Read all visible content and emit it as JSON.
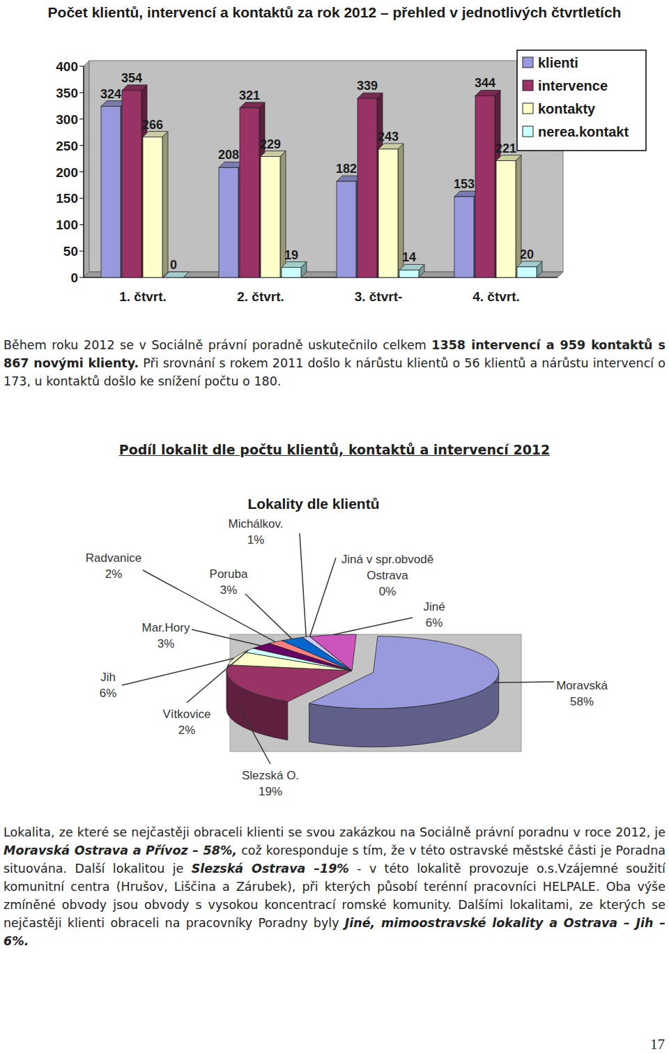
{
  "chart_data": [
    {
      "type": "bar",
      "title": "Počet klientů, intervencí a kontaktů za rok 2012 – přehled v jednotlivých čtvrtletích",
      "categories": [
        "1. čtvrt.",
        "2. čtvrt.",
        "3. čtvrt-",
        "4. čtvrt."
      ],
      "series": [
        {
          "name": "klienti",
          "color": "#9999dd",
          "values": [
            324,
            208,
            182,
            153
          ]
        },
        {
          "name": "intervence",
          "color": "#993366",
          "values": [
            354,
            321,
            339,
            344
          ]
        },
        {
          "name": "kontakty",
          "color": "#ffffcc",
          "values": [
            266,
            229,
            243,
            221
          ]
        },
        {
          "name": "nerea.kontakt",
          "color": "#ccffff",
          "values": [
            0,
            19,
            14,
            20
          ]
        }
      ],
      "ylim": [
        0,
        400
      ],
      "yticks": [
        0,
        50,
        100,
        150,
        200,
        250,
        300,
        350,
        400
      ],
      "grid": false,
      "legend": "right",
      "data_labels": true
    },
    {
      "type": "pie",
      "title": "Lokality dle klientů",
      "categories": [
        "Moravská",
        "Slezská O.",
        "Jih",
        "Vítkovice",
        "Mar.Hory",
        "Radvanice",
        "Poruba",
        "Michálkov.",
        "Jiná v spr.obvodě Ostrava",
        "Jiné"
      ],
      "values": [
        58,
        19,
        6,
        2,
        3,
        2,
        3,
        1,
        0,
        6
      ],
      "value_labels": [
        "58%",
        "19%",
        "6%",
        "2%",
        "3%",
        "2%",
        "3%",
        "1%",
        "0%",
        "6%"
      ],
      "colors": [
        "#9999dd",
        "#993366",
        "#ffffcc",
        "#ccffff",
        "#660066",
        "#ff8080",
        "#0066cc",
        "#ccccff",
        "#000080",
        "#cc55bb"
      ],
      "data_labels": true
    }
  ],
  "text": {
    "paragraphs": [
      {
        "runs": [
          {
            "text": "Během roku 2012 se v Sociálně právní poradně uskutečnilo celkem ",
            "style": "normal"
          },
          {
            "text": "1358 intervencí a 959 kontaktů s 867 novými klienty.",
            "style": "bold"
          },
          {
            "text": " Při srovnání s rokem 2011 došlo k nárůstu klientů o 56 klientů a nárůstu intervencí o 173, u kontaktů došlo ke snížení počtu o 180.",
            "style": "normal"
          }
        ]
      },
      {
        "runs": [
          {
            "text": "Lokalita, ze které se nejčastěji obraceli klienti se svou zakázkou na Sociálně právní poradnu v roce 2012, je ",
            "style": "normal"
          },
          {
            "text": "Moravská Ostrava a Přívoz – 58%,",
            "style": "bold-italic"
          },
          {
            "text": " což koresponduje s tím, že v této ostravské městské části je Poradna situována. Další lokalitou je ",
            "style": "normal"
          },
          {
            "text": "Slezská Ostrava –19%",
            "style": "bold-italic"
          },
          {
            "text": " - v této lokalitě provozuje o.s.Vzájemné soužití komunitní centra (Hrušov, Liščina a Zárubek), při kterých působí terénní pracovníci HELPALE. Oba výše zmíněné obvody jsou obvody s vysokou koncentrací romské komunity. Dalšími lokalitami, ze kterých se nejčastěji klienti obraceli na pracovníky Poradny byly ",
            "style": "normal"
          },
          {
            "text": "Jiné, mimoostravské lokality a Ostrava – Jih – 6%.",
            "style": "bold-italic"
          }
        ]
      }
    ],
    "section_heading": "Podíl lokalit dle počtu klientů, kontaktů a intervencí 2012",
    "page_number": "17"
  }
}
